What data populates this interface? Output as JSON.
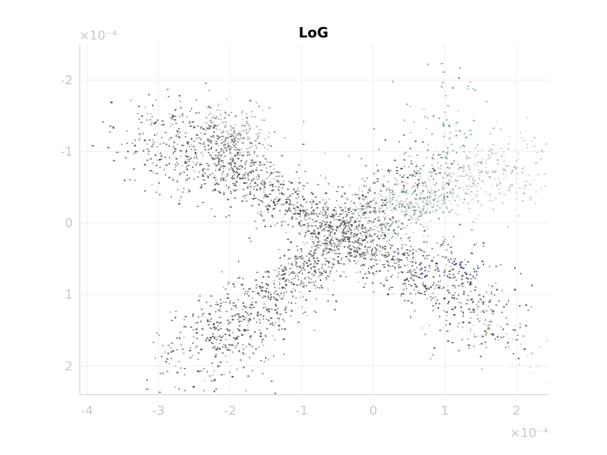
{
  "chart_data": {
    "type": "scatter",
    "title": "LoG",
    "xlabel": "",
    "ylabel": "",
    "xlim": [
      -4.1,
      2.45
    ],
    "ylim": [
      2.4,
      -2.5
    ],
    "y_reversed": true,
    "x_exponent_label": "×10⁻⁴",
    "y_exponent_label": "×10⁻⁴",
    "xticks": [
      -4,
      -3,
      -2,
      -1,
      0,
      1,
      2
    ],
    "xtick_labels": [
      "-4",
      "-3",
      "-2",
      "-1",
      "0",
      "1",
      "2"
    ],
    "yticks": [
      -2,
      -1,
      0,
      1,
      2
    ],
    "ytick_labels": [
      "-2",
      "-1",
      "0",
      "1",
      "2"
    ],
    "grid": true,
    "colors": {
      "axis": "#c8c8c8",
      "grid": "#eeeeee",
      "dark_gray": "#4a4f4a",
      "mid_gray": "#8a908a",
      "light_sage": "#a8bcb4",
      "teal": "#4a8f7a",
      "navy": "#2a2f7a",
      "olive": "#8a8a4a"
    },
    "clusters": [
      {
        "name": "",
        "center": [
          -0.6,
          0.05
        ],
        "spread_along": [
          -3.4,
          -1.5
        ],
        "count": 1400,
        "color": "#4a4f4a"
      },
      {
        "name": "",
        "center": [
          -0.9,
          0.6
        ],
        "spread_along": [
          -2.7,
          2.1
        ],
        "count": 1100,
        "color": "#4f544f"
      },
      {
        "name": "",
        "center": [
          0.6,
          -0.3
        ],
        "spread_along": [
          2.2,
          -0.9
        ],
        "count": 700,
        "color": "#a8bcb4"
      },
      {
        "name": "",
        "center": [
          0.9,
          -0.9
        ],
        "spread_along": [
          1.2,
          -2.1
        ],
        "count": 120,
        "color": "#4a8f7a"
      },
      {
        "name": "",
        "center": [
          1.1,
          0.65
        ],
        "spread_along": [
          0.6,
          0.5
        ],
        "count": 90,
        "color": "#2a2f7a"
      },
      {
        "name": "",
        "center": [
          -2.0,
          -1.2
        ],
        "spread_along": [
          -2.0,
          -1.2
        ],
        "count": 260,
        "color": "#8a908a"
      },
      {
        "name": "",
        "center": [
          1.9,
          1.7
        ],
        "spread_along": [
          0.6,
          0.7
        ],
        "count": 60,
        "color": "#a8bcb4"
      },
      {
        "name": "",
        "center": [
          1.6,
          1.5
        ],
        "spread_along": [
          0.3,
          0.3
        ],
        "count": 10,
        "color": "#8a8a4a"
      }
    ]
  }
}
